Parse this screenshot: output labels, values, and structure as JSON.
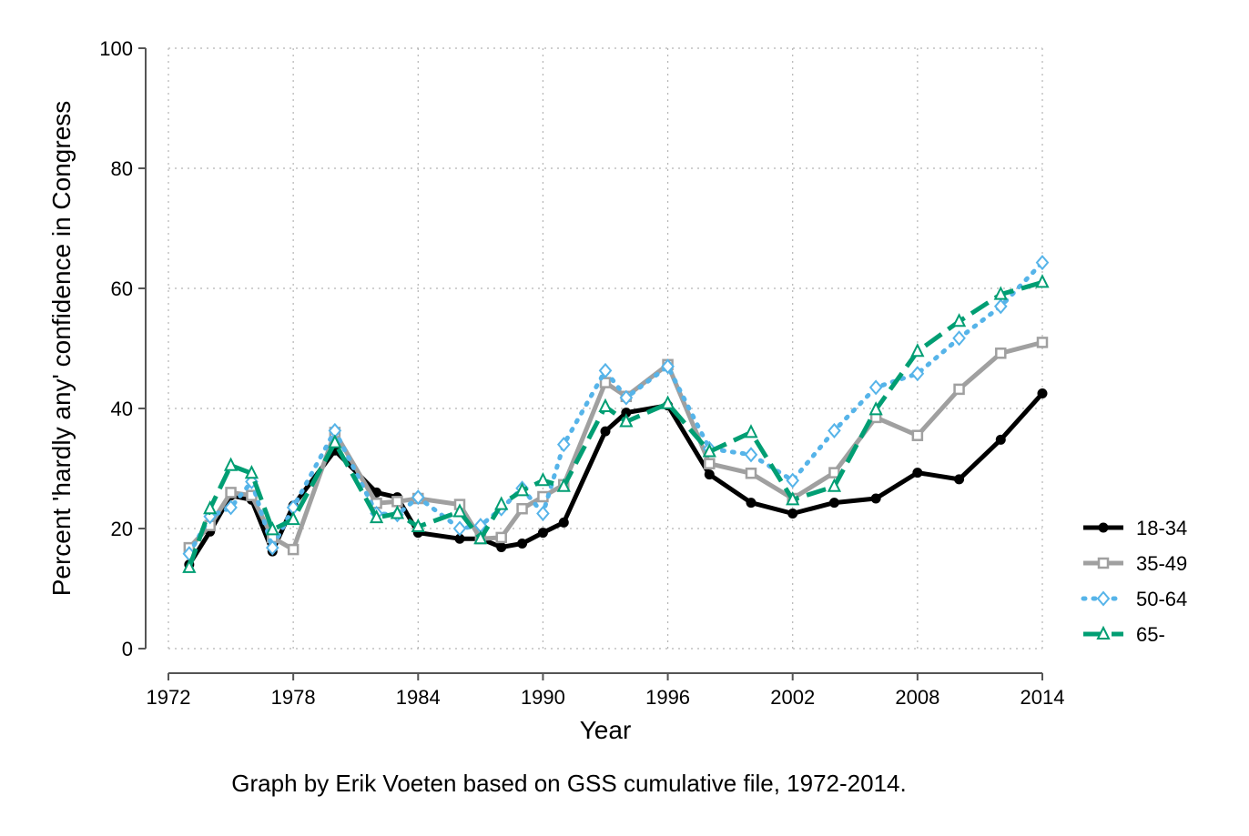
{
  "chart_data": {
    "type": "line",
    "title": "",
    "xlabel": "Year",
    "ylabel": "Percent 'hardly any' confidence in Congress",
    "caption": "Graph by Erik Voeten based on GSS cumulative file, 1972-2014.",
    "xlim": [
      1972,
      2014
    ],
    "ylim": [
      0,
      100
    ],
    "x_ticks": [
      1972,
      1978,
      1984,
      1990,
      1996,
      2002,
      2008,
      2014
    ],
    "y_ticks": [
      0,
      20,
      40,
      60,
      80,
      100
    ],
    "grid": true,
    "legend_position": "right",
    "series": [
      {
        "name": "18-34",
        "color": "#000000",
        "dash": "solid",
        "marker": "circle",
        "x": [
          1973,
          1974,
          1975,
          1976,
          1977,
          1978,
          1980,
          1982,
          1983,
          1984,
          1986,
          1987,
          1988,
          1989,
          1990,
          1991,
          1993,
          1994,
          1996,
          1998,
          2000,
          2002,
          2004,
          2006,
          2008,
          2010,
          2012,
          2014
        ],
        "y": [
          14,
          19.5,
          25.5,
          24.8,
          16.2,
          23.8,
          33,
          26,
          25.2,
          19.3,
          18.3,
          18.3,
          16.9,
          17.5,
          19.3,
          21,
          36.2,
          39.3,
          40.5,
          29,
          24.3,
          22.5,
          24.3,
          25,
          29.3,
          28.2,
          34.8,
          42.5
        ]
      },
      {
        "name": "35-49",
        "color": "#a0a0a0",
        "dash": "solid",
        "marker": "square",
        "x": [
          1973,
          1974,
          1975,
          1976,
          1977,
          1978,
          1980,
          1982,
          1983,
          1984,
          1986,
          1987,
          1988,
          1989,
          1990,
          1991,
          1993,
          1994,
          1996,
          1998,
          2000,
          2002,
          2004,
          2006,
          2008,
          2010,
          2012,
          2014
        ],
        "y": [
          16.8,
          20.5,
          26,
          25.5,
          18.5,
          16.5,
          36,
          24.2,
          24.5,
          25,
          24,
          18.3,
          18.5,
          23.3,
          25.3,
          27.3,
          44.3,
          42,
          47.3,
          30.8,
          29.2,
          25,
          29.3,
          38.5,
          35.5,
          43.2,
          49.2,
          51
        ]
      },
      {
        "name": "50-64",
        "color": "#56b4e9",
        "dash": "dot",
        "marker": "diamond-hollow",
        "x": [
          1973,
          1974,
          1975,
          1976,
          1977,
          1978,
          1980,
          1982,
          1983,
          1984,
          1986,
          1987,
          1988,
          1989,
          1990,
          1991,
          1993,
          1994,
          1996,
          1998,
          2000,
          2002,
          2004,
          2006,
          2008,
          2010,
          2012,
          2014
        ],
        "y": [
          15.8,
          22,
          23.5,
          27.8,
          16.8,
          23.5,
          36.3,
          22.5,
          22.3,
          25.2,
          20,
          20.5,
          23.3,
          26.7,
          22.5,
          34,
          46.3,
          41.8,
          47,
          33.3,
          32.3,
          28,
          36.3,
          43.5,
          45.8,
          51.7,
          57,
          64.3
        ]
      },
      {
        "name": "65-",
        "color": "#009e73",
        "dash": "dash",
        "marker": "triangle-hollow",
        "x": [
          1973,
          1974,
          1975,
          1976,
          1977,
          1978,
          1980,
          1982,
          1983,
          1984,
          1986,
          1987,
          1988,
          1989,
          1990,
          1991,
          1993,
          1994,
          1996,
          1998,
          2000,
          2002,
          2004,
          2006,
          2008,
          2010,
          2012,
          2014
        ],
        "y": [
          13.5,
          23.3,
          30.5,
          29.2,
          19.8,
          21.5,
          34.3,
          21.8,
          22.5,
          20.3,
          22.8,
          18.3,
          24,
          26.3,
          28,
          27,
          40.3,
          37.8,
          40.8,
          32.8,
          36,
          24.8,
          27,
          39.8,
          49.5,
          54.5,
          59,
          61
        ]
      }
    ]
  }
}
